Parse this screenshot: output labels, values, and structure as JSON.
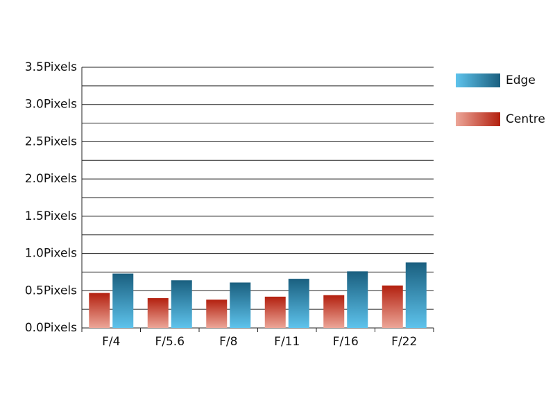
{
  "chart_data": {
    "type": "bar",
    "categories": [
      "F/4",
      "F/5.6",
      "F/8",
      "F/11",
      "F/16",
      "F/22"
    ],
    "series": [
      {
        "name": "Edge",
        "color": "#1a5f7f",
        "color_light": "#5ec3ec",
        "values": [
          0.73,
          0.64,
          0.61,
          0.66,
          0.76,
          0.88
        ]
      },
      {
        "name": "Centre",
        "color": "#b3200f",
        "color_light": "#eca698",
        "values": [
          0.47,
          0.4,
          0.38,
          0.42,
          0.44,
          0.57
        ]
      }
    ],
    "ylim": [
      0,
      3.5
    ],
    "yticks": [
      {
        "value": 0,
        "label": "0.0Pixels"
      },
      {
        "value": 0.5,
        "label": "0.5Pixels"
      },
      {
        "value": 1,
        "label": "1.0Pixels"
      },
      {
        "value": 1.5,
        "label": "1.5Pixels"
      },
      {
        "value": 2,
        "label": "2.0Pixels"
      },
      {
        "value": 2.5,
        "label": "2.5Pixels"
      },
      {
        "value": 3,
        "label": "3.0Pixels"
      },
      {
        "value": 3.5,
        "label": "3.5Pixels"
      }
    ],
    "minor_yticks": [
      0.25,
      0.75,
      1.25,
      1.75,
      2.25,
      2.75,
      3.25
    ],
    "grid": true,
    "legend": "right"
  }
}
